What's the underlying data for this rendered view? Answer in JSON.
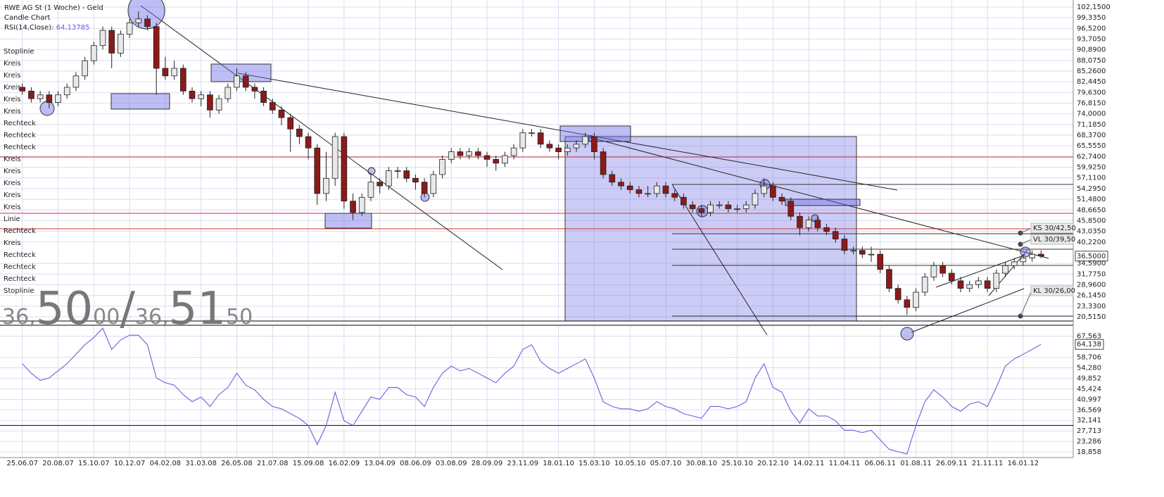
{
  "header": {
    "title": "RWE AG St (1 Woche) - Geld",
    "subtitle": "Candle Chart",
    "indicator": "RSI(14,Close):",
    "indicator_value": "64,13785"
  },
  "objects": [
    "Stoplinie",
    "Kreis",
    "Kreis",
    "Kreis",
    "Kreis",
    "Kreis",
    "Rechteck",
    "Rechteck",
    "Rechteck",
    "Kreis",
    "Kreis",
    "Kreis",
    "Kreis",
    "Kreis",
    "Linie",
    "Rechteck",
    "Kreis",
    "Rechteck",
    "Rechteck",
    "Rechteck",
    "Stoplinie"
  ],
  "quote": {
    "bid": [
      "36,",
      "50",
      "00"
    ],
    "separator": "/",
    "ask": [
      "36,",
      "51",
      "50"
    ]
  },
  "annotations": [
    "KS 30/42,50",
    "VL 30/39,50",
    "KL 30/26,00"
  ],
  "chart_data": [
    {
      "type": "candlestick",
      "up_color": "#e8e8e8",
      "down_color": "#8b1a1a",
      "xlim": [
        -2.5,
        117.6
      ],
      "ylim": [
        19.4,
        104
      ],
      "grid": true,
      "price_marker": {
        "value": 36.5,
        "label": "36,5000"
      },
      "yticks": [
        {
          "value": 102.15,
          "label": "102,1500"
        },
        {
          "value": 99.335,
          "label": "99,3350"
        },
        {
          "value": 96.52,
          "label": "96,5200"
        },
        {
          "value": 93.705,
          "label": "93,7050"
        },
        {
          "value": 90.89,
          "label": "90,8900"
        },
        {
          "value": 88.075,
          "label": "88,0750"
        },
        {
          "value": 85.26,
          "label": "85,2600"
        },
        {
          "value": 82.445,
          "label": "82,4450"
        },
        {
          "value": 79.63,
          "label": "79,6300"
        },
        {
          "value": 76.815,
          "label": "76,8150"
        },
        {
          "value": 74,
          "label": "74,0000"
        },
        {
          "value": 71.185,
          "label": "71,1850"
        },
        {
          "value": 68.37,
          "label": "68,3700"
        },
        {
          "value": 65.555,
          "label": "65,5550"
        },
        {
          "value": 62.74,
          "label": "62,7400"
        },
        {
          "value": 59.925,
          "label": "59,9250"
        },
        {
          "value": 57.11,
          "label": "57,1100"
        },
        {
          "value": 54.295,
          "label": "54,2950"
        },
        {
          "value": 51.48,
          "label": "51,4800"
        },
        {
          "value": 48.665,
          "label": "48,6650"
        },
        {
          "value": 45.85,
          "label": "45,8500"
        },
        {
          "value": 43.035,
          "label": "43,0350"
        },
        {
          "value": 40.22,
          "label": "40,2200"
        },
        {
          "value": 34.59,
          "label": "34,5900"
        },
        {
          "value": 31.775,
          "label": "31,7750"
        },
        {
          "value": 28.96,
          "label": "28,9600"
        },
        {
          "value": 26.145,
          "label": "26,1450"
        },
        {
          "value": 23.33,
          "label": "23,3300"
        },
        {
          "value": 20.515,
          "label": "20,5150"
        }
      ],
      "open": [
        81,
        80,
        78,
        79,
        77,
        79,
        81,
        84,
        88,
        92,
        96,
        90,
        95,
        98,
        99,
        97,
        86,
        84,
        86,
        80,
        78,
        79,
        75,
        78,
        81,
        84,
        81,
        80,
        77,
        75,
        73,
        70,
        68,
        65,
        53,
        57,
        68,
        51,
        48,
        52,
        56,
        55,
        59,
        59,
        57,
        56,
        53,
        58,
        62,
        64,
        63,
        64,
        63,
        62,
        61,
        63,
        65,
        69,
        69,
        66,
        65,
        64,
        65,
        66,
        68,
        64,
        58,
        56,
        55,
        54,
        53,
        53,
        55,
        53,
        52,
        50,
        49,
        48,
        50,
        50,
        49,
        49,
        50,
        53,
        55,
        52,
        51,
        47,
        44,
        46,
        44,
        43,
        41,
        38,
        38,
        37,
        37,
        33,
        28,
        25,
        23,
        27,
        31,
        34,
        32,
        30,
        28,
        29,
        30,
        28,
        32,
        34,
        35,
        36,
        37
      ],
      "high": [
        82,
        81,
        80,
        80,
        80,
        82,
        85,
        89,
        93,
        97,
        97,
        96,
        99,
        101,
        100,
        98,
        89,
        88,
        87,
        81,
        80,
        80,
        79,
        82,
        86,
        85,
        82,
        81,
        78,
        76,
        74,
        71,
        69,
        66,
        64,
        69,
        69,
        53,
        53,
        58,
        57,
        60,
        60,
        60,
        58,
        57,
        59,
        63,
        65,
        65,
        65,
        65,
        64,
        63,
        64,
        66,
        70,
        70,
        70,
        67,
        66,
        66,
        67,
        69,
        69,
        65,
        59,
        57,
        56,
        55,
        55,
        56,
        56,
        54,
        53,
        51,
        50,
        51,
        51,
        51,
        50,
        51,
        54,
        57,
        56,
        53,
        52,
        48,
        47,
        47,
        45,
        44,
        42,
        39,
        39,
        39,
        38,
        34,
        29,
        26,
        28,
        32,
        35,
        35,
        33,
        31,
        30,
        31,
        31,
        33,
        35,
        36,
        37,
        38,
        38
      ],
      "low": [
        79,
        77,
        77,
        75.5,
        76,
        78,
        80,
        83,
        87,
        91,
        86,
        89,
        94,
        97,
        96,
        79,
        83,
        83,
        79,
        77,
        76,
        73,
        74,
        77,
        80,
        80,
        78,
        76,
        74,
        71,
        64,
        66,
        62,
        50,
        51,
        55,
        49,
        46,
        47,
        51,
        53,
        54,
        57,
        56,
        54,
        52,
        52,
        57,
        61,
        62,
        62,
        62,
        60,
        59,
        60,
        62,
        64,
        68,
        65,
        64,
        62,
        63,
        64,
        65,
        62,
        57,
        55,
        54,
        53,
        52,
        52,
        52,
        52,
        51,
        49,
        48,
        47,
        47,
        49,
        48,
        48,
        48,
        49,
        52,
        51,
        50,
        46,
        42,
        43,
        43,
        42,
        40,
        37,
        37,
        36,
        35,
        32,
        27,
        24,
        21,
        22,
        26,
        30,
        31,
        29,
        27,
        27,
        28,
        27,
        27,
        31,
        33,
        34,
        35,
        36
      ],
      "close": [
        80,
        78,
        79,
        77,
        79,
        81,
        84,
        88,
        92,
        96,
        90,
        95,
        98,
        99,
        97,
        86,
        84,
        86,
        80,
        78,
        79,
        75,
        78,
        81,
        84,
        81,
        80,
        77,
        75,
        73,
        70,
        68,
        65,
        53,
        57,
        68,
        51,
        48,
        52,
        56,
        55,
        59,
        59,
        57,
        56,
        53,
        58,
        62,
        64,
        63,
        64,
        63,
        62,
        61,
        63,
        65,
        69,
        69,
        66,
        65,
        64,
        65,
        66,
        68,
        64,
        58,
        56,
        55,
        54,
        53,
        53,
        55,
        53,
        52,
        50,
        49,
        48,
        50,
        50,
        49,
        49,
        50,
        53,
        55,
        52,
        51,
        47,
        44,
        46,
        44,
        43,
        41,
        38,
        38,
        37,
        37,
        33,
        28,
        25,
        23,
        27,
        31,
        34,
        32,
        30,
        28,
        29,
        30,
        28,
        32,
        34,
        35,
        36,
        37,
        36.5
      ]
    },
    {
      "type": "line",
      "color": "#6464dc",
      "xlim": [
        -2.5,
        117.6
      ],
      "ylim": [
        16.5,
        72.2
      ],
      "grid": true,
      "hlines": [
        30
      ],
      "rsi_marker": {
        "value": 64.138,
        "label": "64,138"
      },
      "yticks": [
        {
          "value": 67.563,
          "label": "67,563"
        },
        {
          "value": 58.706,
          "label": "58,706"
        },
        {
          "value": 54.28,
          "label": "54,280"
        },
        {
          "value": 49.852,
          "label": "49,852"
        },
        {
          "value": 45.424,
          "label": "45,424"
        },
        {
          "value": 40.997,
          "label": "40,997"
        },
        {
          "value": 36.569,
          "label": "36,569"
        },
        {
          "value": 32.141,
          "label": "32,141"
        },
        {
          "value": 27.713,
          "label": "27,713"
        },
        {
          "value": 23.286,
          "label": "23,286"
        },
        {
          "value": 18.858,
          "label": "18,858"
        }
      ],
      "xticks": [
        {
          "value": 0,
          "label": "25.06.07"
        },
        {
          "value": 4,
          "label": "20.08.07"
        },
        {
          "value": 8,
          "label": "15.10.07"
        },
        {
          "value": 12,
          "label": "10.12.07"
        },
        {
          "value": 16,
          "label": "04.02.08"
        },
        {
          "value": 20,
          "label": "31.03.08"
        },
        {
          "value": 24,
          "label": "26.05.08"
        },
        {
          "value": 28,
          "label": "21.07.08"
        },
        {
          "value": 32,
          "label": "15.09.08"
        },
        {
          "value": 36,
          "label": "16.02.09"
        },
        {
          "value": 40,
          "label": "13.04.09"
        },
        {
          "value": 44,
          "label": "08.06.09"
        },
        {
          "value": 48,
          "label": "03.08.09"
        },
        {
          "value": 52,
          "label": "28.09.09"
        },
        {
          "value": 56,
          "label": "23.11.09"
        },
        {
          "value": 60,
          "label": "18.01.10"
        },
        {
          "value": 64,
          "label": "15.03.10"
        },
        {
          "value": 68,
          "label": "10.05.10"
        },
        {
          "value": 72,
          "label": "05.07.10"
        },
        {
          "value": 76,
          "label": "30.08.10"
        },
        {
          "value": 80,
          "label": "25.10.10"
        },
        {
          "value": 84,
          "label": "20.12.10"
        },
        {
          "value": 88,
          "label": "14.02.11"
        },
        {
          "value": 92,
          "label": "11.04.11"
        },
        {
          "value": 96,
          "label": "06.06.11"
        },
        {
          "value": 100,
          "label": "01.08.11"
        },
        {
          "value": 104,
          "label": "26.09.11"
        },
        {
          "value": 108,
          "label": "21.11.11"
        },
        {
          "value": 112,
          "label": "16.01.12"
        }
      ],
      "values": [
        56,
        52,
        49,
        50,
        53,
        56,
        60,
        64,
        67,
        71,
        62,
        66,
        68,
        68,
        64,
        50,
        48,
        47,
        43,
        40,
        42,
        38,
        43,
        46,
        52,
        47,
        45,
        41,
        38,
        37,
        35,
        33,
        30,
        22,
        30,
        44,
        32,
        30,
        36,
        42,
        41,
        46,
        46,
        43,
        42,
        38,
        46,
        52,
        55,
        53,
        54,
        52,
        50,
        48,
        52,
        55,
        62,
        64,
        57,
        54,
        52,
        54,
        56,
        58,
        50,
        40,
        38,
        37,
        37,
        36,
        37,
        40,
        38,
        37,
        35,
        34,
        33,
        38,
        38,
        37,
        38,
        40,
        50,
        56,
        46,
        44,
        36,
        31,
        37,
        34,
        34,
        32,
        28,
        28,
        27,
        28,
        24,
        20,
        19,
        18,
        30,
        40,
        45,
        42,
        38,
        36,
        39,
        40,
        38,
        46,
        55,
        58,
        60,
        62,
        64.138
      ]
    }
  ]
}
